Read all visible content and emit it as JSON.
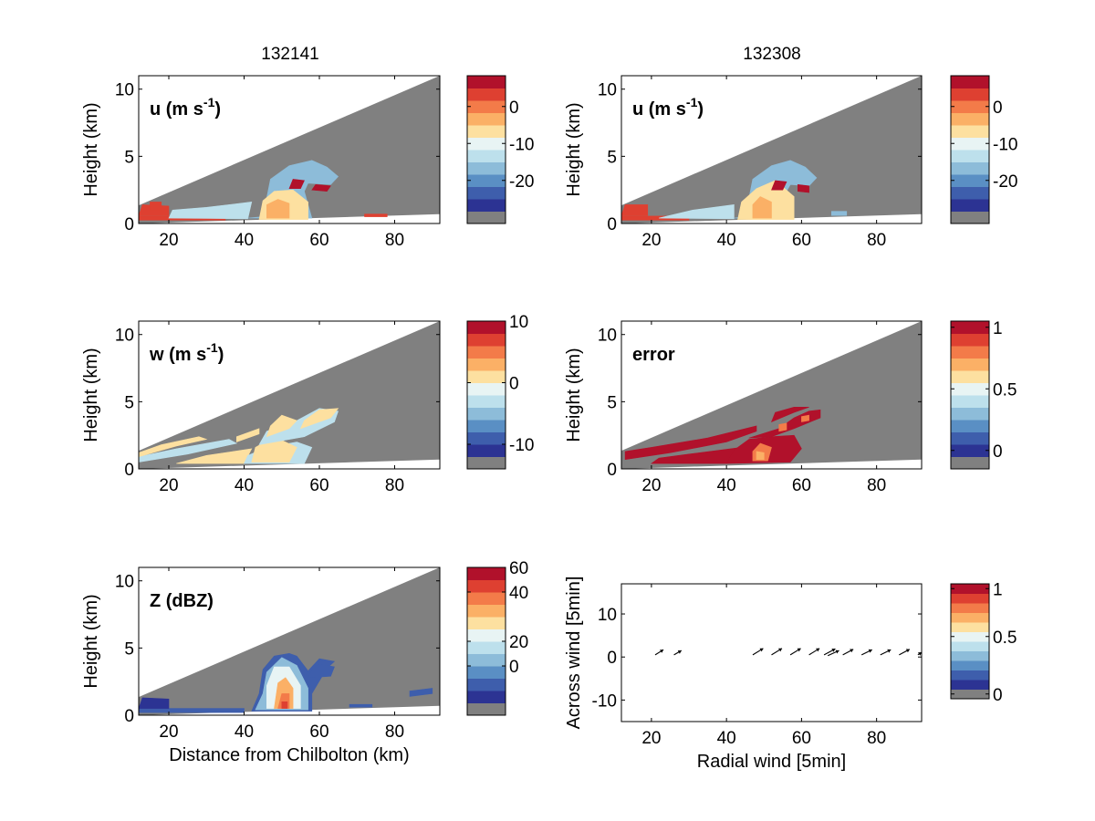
{
  "titles": {
    "left": "132141",
    "right": "132308"
  },
  "colors": {
    "mask": "#808080",
    "bands": [
      "#2c3393",
      "#3e5eac",
      "#5a8fc4",
      "#8dbcd9",
      "#bde0ec",
      "#e8f4f4",
      "#fde0a0",
      "#fbb066",
      "#f37b49",
      "#de4031",
      "#b1112b"
    ],
    "vector": "#000000"
  },
  "chart_data": [
    {
      "id": "u-left",
      "type": "heatmap",
      "label": "u (m s",
      "label_sup": "-1",
      "label_end": ")",
      "ylabel": "Height (km)",
      "xlabel": "",
      "xlim": [
        12,
        92
      ],
      "ylim": [
        0,
        11
      ],
      "xticks": [
        "20",
        "40",
        "60",
        "80"
      ],
      "yticks": [
        "0",
        "5",
        "10"
      ],
      "colorbar": {
        "levels": 12,
        "ticks": [
          {
            "label": "0",
            "level": 9.5
          },
          {
            "label": "-10",
            "level": 6.5
          },
          {
            "label": "-20",
            "level": 3.5
          }
        ]
      }
    },
    {
      "id": "u-right",
      "type": "heatmap",
      "label": "u (m s",
      "label_sup": "-1",
      "label_end": ")",
      "ylabel": "Height (km)",
      "xlabel": "",
      "xlim": [
        12,
        92
      ],
      "ylim": [
        0,
        11
      ],
      "xticks": [
        "20",
        "40",
        "60",
        "80"
      ],
      "yticks": [
        "0",
        "5",
        "10"
      ],
      "colorbar": {
        "levels": 12,
        "ticks": [
          {
            "label": "0",
            "level": 9.5
          },
          {
            "label": "-10",
            "level": 6.5
          },
          {
            "label": "-20",
            "level": 3.5
          }
        ]
      }
    },
    {
      "id": "w-left",
      "type": "heatmap",
      "label": "w (m s",
      "label_sup": "-1",
      "label_end": ")",
      "ylabel": "Height (km)",
      "xlabel": "",
      "xlim": [
        12,
        92
      ],
      "ylim": [
        0,
        11
      ],
      "xticks": [
        "20",
        "40",
        "60",
        "80"
      ],
      "yticks": [
        "0",
        "5",
        "10"
      ],
      "colorbar": {
        "levels": 12,
        "ticks": [
          {
            "label": "10",
            "level": 12
          },
          {
            "label": "0",
            "level": 7
          },
          {
            "label": "-10",
            "level": 2
          }
        ]
      }
    },
    {
      "id": "error-right",
      "type": "heatmap",
      "label": "error",
      "label_sup": "",
      "label_end": "",
      "ylabel": "Height (km)",
      "xlabel": "",
      "xlim": [
        12,
        92
      ],
      "ylim": [
        0,
        11
      ],
      "xticks": [
        "20",
        "40",
        "60",
        "80"
      ],
      "yticks": [
        "0",
        "5",
        "10"
      ],
      "colorbar": {
        "levels": 12,
        "ticks": [
          {
            "label": "1",
            "level": 11.5
          },
          {
            "label": "0.5",
            "level": 6.5
          },
          {
            "label": "0",
            "level": 1.5
          }
        ]
      }
    },
    {
      "id": "z-left",
      "type": "heatmap",
      "label": "Z (dBZ)",
      "label_sup": "",
      "label_end": "",
      "ylabel": "Height (km)",
      "xlabel": "Distance from Chilbolton (km)",
      "xlim": [
        12,
        92
      ],
      "ylim": [
        0,
        11
      ],
      "xticks": [
        "20",
        "40",
        "60",
        "80"
      ],
      "yticks": [
        "0",
        "5",
        "10"
      ],
      "colorbar": {
        "levels": 12,
        "ticks": [
          {
            "label": "60",
            "level": 12
          },
          {
            "label": "40",
            "level": 10
          },
          {
            "label": "20",
            "level": 6
          },
          {
            "label": "0",
            "level": 4
          }
        ]
      }
    },
    {
      "id": "wind-right",
      "type": "scatter",
      "label": "",
      "label_sup": "",
      "label_end": "",
      "ylabel": "Across wind [5min]",
      "xlabel": "Radial wind [5min]",
      "xlim": [
        12,
        92
      ],
      "ylim": [
        -15,
        17
      ],
      "xticks": [
        "20",
        "40",
        "60",
        "80"
      ],
      "yticks": [
        "-10",
        "0",
        "10"
      ],
      "vectors": [
        {
          "x": 21,
          "y": 0.5,
          "dx": 2.2,
          "dy": 1.2
        },
        {
          "x": 26,
          "y": 0.5,
          "dx": 2.0,
          "dy": 1.0
        },
        {
          "x": 47,
          "y": 0.5,
          "dx": 2.8,
          "dy": 1.5
        },
        {
          "x": 52,
          "y": 0.5,
          "dx": 2.8,
          "dy": 1.5
        },
        {
          "x": 57,
          "y": 0.5,
          "dx": 2.8,
          "dy": 1.5
        },
        {
          "x": 62,
          "y": 0.5,
          "dx": 2.8,
          "dy": 1.5
        },
        {
          "x": 66,
          "y": 0.5,
          "dx": 3.0,
          "dy": 1.4
        },
        {
          "x": 67,
          "y": 0.3,
          "dx": 3.0,
          "dy": 1.2
        },
        {
          "x": 71,
          "y": 0.5,
          "dx": 2.8,
          "dy": 1.3
        },
        {
          "x": 76,
          "y": 0.5,
          "dx": 2.8,
          "dy": 1.2
        },
        {
          "x": 81,
          "y": 0.5,
          "dx": 2.8,
          "dy": 1.2
        },
        {
          "x": 86,
          "y": 0.5,
          "dx": 2.8,
          "dy": 1.3
        },
        {
          "x": 91,
          "y": 0.5,
          "dx": 1.0,
          "dy": 0.6
        }
      ],
      "colorbar": {
        "levels": 12,
        "ticks": [
          {
            "label": "1",
            "level": 11.5
          },
          {
            "label": "0.5",
            "level": 6.5
          },
          {
            "label": "0",
            "level": 0.5
          }
        ]
      }
    }
  ]
}
